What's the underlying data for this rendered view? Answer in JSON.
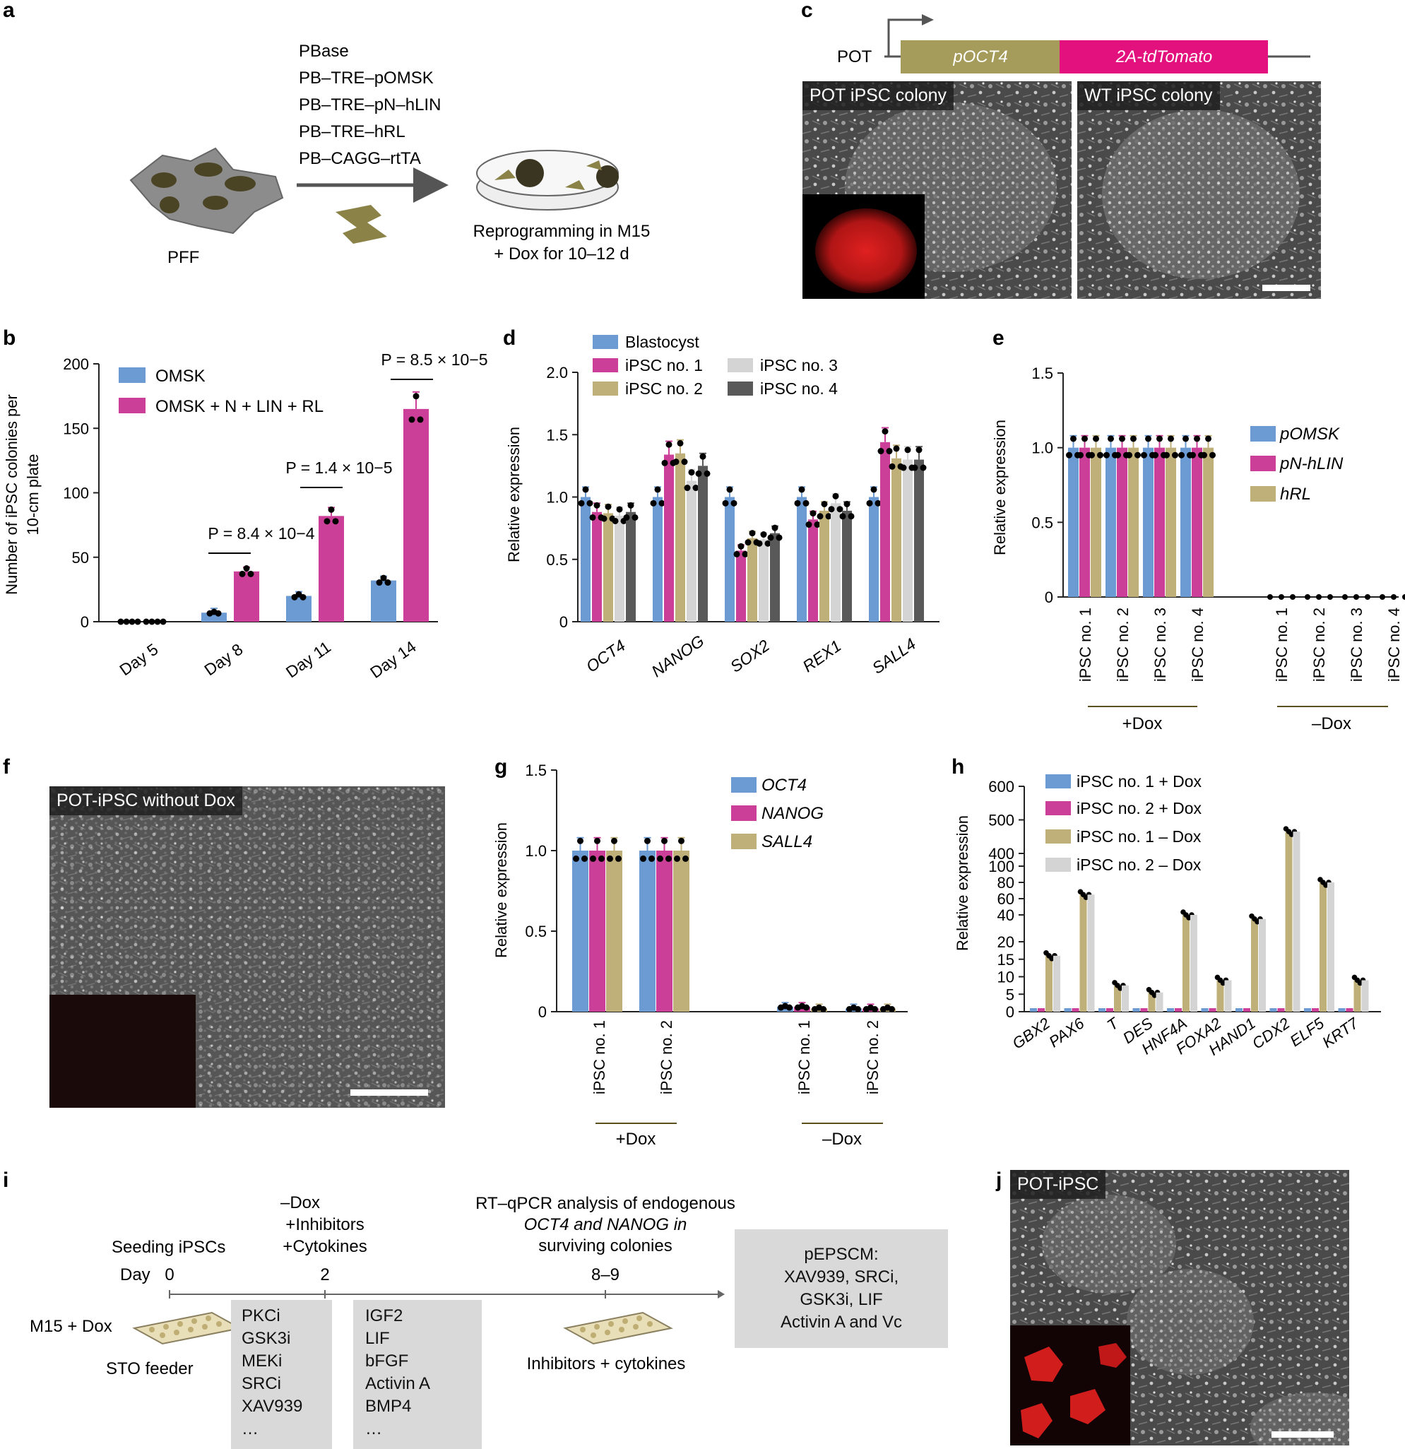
{
  "panel_labels": [
    "a",
    "b",
    "c",
    "d",
    "e",
    "f",
    "g",
    "h",
    "i",
    "j"
  ],
  "panel_a": {
    "cell_label": "PFF",
    "constructs": [
      "PBase",
      "PB–TRE–pOMSK",
      "PB–TRE–pN–hLIN",
      "PB–TRE–hRL",
      "PB–CAGG–rtTA"
    ],
    "caption": [
      "Reprogramming in M15",
      "+ Dox for 10–12 d"
    ]
  },
  "panel_c": {
    "construct_name": "POT",
    "segment1": "pOCT4",
    "segment2": "2A-tdTomato",
    "image1_label": "POT iPSC colony",
    "image2_label": "WT iPSC colony"
  },
  "panel_f": {
    "image_label": "POT-iPSC without Dox"
  },
  "panel_i": {
    "left_label": "M15 + Dox",
    "feeder_label": "STO feeder",
    "seeding_label": "Seeding iPSCs",
    "day_label": "Day",
    "day0": "0",
    "day2": "2",
    "day89": "8–9",
    "treat_label": [
      "–Dox",
      "+Inhibitors",
      "+Cytokines"
    ],
    "rt_label": [
      "RT–qPCR analysis of endogenous",
      "OCT4 and NANOG in",
      "surviving colonies"
    ],
    "inhibitors": [
      "PKCi",
      "GSK3i",
      "MEKi",
      "SRCi",
      "XAV939",
      "…"
    ],
    "cytokines": [
      "IGF2",
      "LIF",
      "bFGF",
      "Activin A",
      "BMP4",
      "…"
    ],
    "plate2_label": "Inhibitors + cytokines",
    "medium_box": [
      "pEPSCM:",
      "XAV939, SRCi,",
      "GSK3i, LIF",
      "Activin A and Vc"
    ]
  },
  "panel_j": {
    "image_label": "POT-iPSC"
  },
  "colors": {
    "blue": "#6b9bd2",
    "magenta": "#cc3f99",
    "khaki": "#bfb07a",
    "lightgray": "#d4d4d4",
    "darkgray": "#595959",
    "pot_olive": "#a59b5a",
    "pot_magenta": "#e2117d"
  },
  "chart_data": [
    {
      "panel": "b",
      "type": "bar",
      "ylabel": "Number of iPSC colonies per 10-cm plate",
      "ylim": [
        0,
        200
      ],
      "yticks": [
        0,
        50,
        100,
        150,
        200
      ],
      "categories": [
        "Day 5",
        "Day 8",
        "Day 11",
        "Day 14"
      ],
      "series": [
        {
          "name": "OMSK",
          "values": [
            0,
            7,
            20,
            32
          ]
        },
        {
          "name": "OMSK + N + LIN + RL",
          "values": [
            0,
            39,
            82,
            165
          ]
        }
      ],
      "annotations": [
        "P = 8.4 × 10−4",
        "P = 1.4 × 10−5",
        "P = 8.5 × 10−5"
      ]
    },
    {
      "panel": "d",
      "type": "bar",
      "ylabel": "Relative expression",
      "ylim": [
        0,
        2.0
      ],
      "yticks": [
        "0",
        "0.5",
        "1.0",
        "1.5",
        "2.0"
      ],
      "categories": [
        "OCT4",
        "NANOG",
        "SOX2",
        "REX1",
        "SALL4"
      ],
      "series": [
        {
          "name": "Blastocyst",
          "values": [
            1.0,
            1.0,
            1.0,
            1.0,
            1.0
          ]
        },
        {
          "name": "iPSC no. 1",
          "values": [
            0.88,
            1.34,
            0.57,
            0.82,
            1.44
          ]
        },
        {
          "name": "iPSC no. 2",
          "values": [
            0.87,
            1.35,
            0.67,
            0.89,
            1.31
          ]
        },
        {
          "name": "iPSC no. 3",
          "values": [
            0.85,
            1.13,
            0.66,
            0.95,
            1.3
          ]
        },
        {
          "name": "iPSC no. 4",
          "values": [
            0.88,
            1.25,
            0.71,
            0.89,
            1.3
          ]
        }
      ]
    },
    {
      "panel": "e",
      "type": "bar",
      "ylabel": "Relative expression",
      "ylim": [
        0,
        1.5
      ],
      "yticks": [
        "0",
        "0.5",
        "1.0",
        "1.5"
      ],
      "categories": [
        "iPSC no. 1",
        "iPSC no. 2",
        "iPSC no. 3",
        "iPSC no. 4",
        "iPSC no. 1",
        "iPSC no. 2",
        "iPSC no. 3",
        "iPSC no. 4"
      ],
      "groups": [
        "+Dox",
        "–Dox"
      ],
      "series": [
        {
          "name": "pOMSK",
          "values": [
            1.0,
            1.0,
            1.0,
            1.0,
            0,
            0,
            0,
            0
          ]
        },
        {
          "name": "pN-hLIN",
          "values": [
            1.0,
            1.0,
            1.0,
            1.0,
            0,
            0,
            0,
            0
          ]
        },
        {
          "name": "hRL",
          "values": [
            1.0,
            1.0,
            1.0,
            1.0,
            0,
            0,
            0,
            0
          ]
        }
      ]
    },
    {
      "panel": "g",
      "type": "bar",
      "ylabel": "Relative expression",
      "ylim": [
        0,
        1.5
      ],
      "yticks": [
        "0",
        "0.5",
        "1.0",
        "1.5"
      ],
      "categories": [
        "iPSC no. 1",
        "iPSC no. 2",
        "iPSC no. 1",
        "iPSC no. 2"
      ],
      "groups": [
        "+Dox",
        "–Dox"
      ],
      "series": [
        {
          "name": "OCT4",
          "values": [
            1.0,
            1.0,
            0.03,
            0.02
          ]
        },
        {
          "name": "NANOG",
          "values": [
            1.0,
            1.0,
            0.03,
            0.02
          ]
        },
        {
          "name": "SALL4",
          "values": [
            1.0,
            1.0,
            0.02,
            0.02
          ]
        }
      ]
    },
    {
      "panel": "h",
      "type": "bar",
      "ylabel": "Relative expression",
      "yticks": [
        "0",
        "5",
        "10",
        "15",
        "20",
        "40",
        "60",
        "80",
        "100",
        "400",
        "500",
        "600"
      ],
      "categories": [
        "GBX2",
        "PAX6",
        "T",
        "DES",
        "HNF4A",
        "FOXA2",
        "HAND1",
        "CDX2",
        "ELF5",
        "KRT7"
      ],
      "series": [
        {
          "name": "iPSC no. 1 + Dox",
          "values": [
            1,
            1,
            1,
            1,
            1,
            1,
            1,
            1,
            1,
            1
          ]
        },
        {
          "name": "iPSC no. 2 + Dox",
          "values": [
            1,
            1,
            1,
            1,
            1,
            1,
            1,
            1,
            1,
            1
          ]
        },
        {
          "name": "iPSC no. 1 – Dox",
          "values": [
            16,
            65,
            7.5,
            5.5,
            40,
            9,
            35,
            465,
            80,
            9
          ]
        },
        {
          "name": "iPSC no. 2 – Dox",
          "values": [
            16,
            65,
            7.5,
            5.5,
            40,
            9,
            35,
            465,
            80,
            9
          ]
        }
      ]
    }
  ]
}
